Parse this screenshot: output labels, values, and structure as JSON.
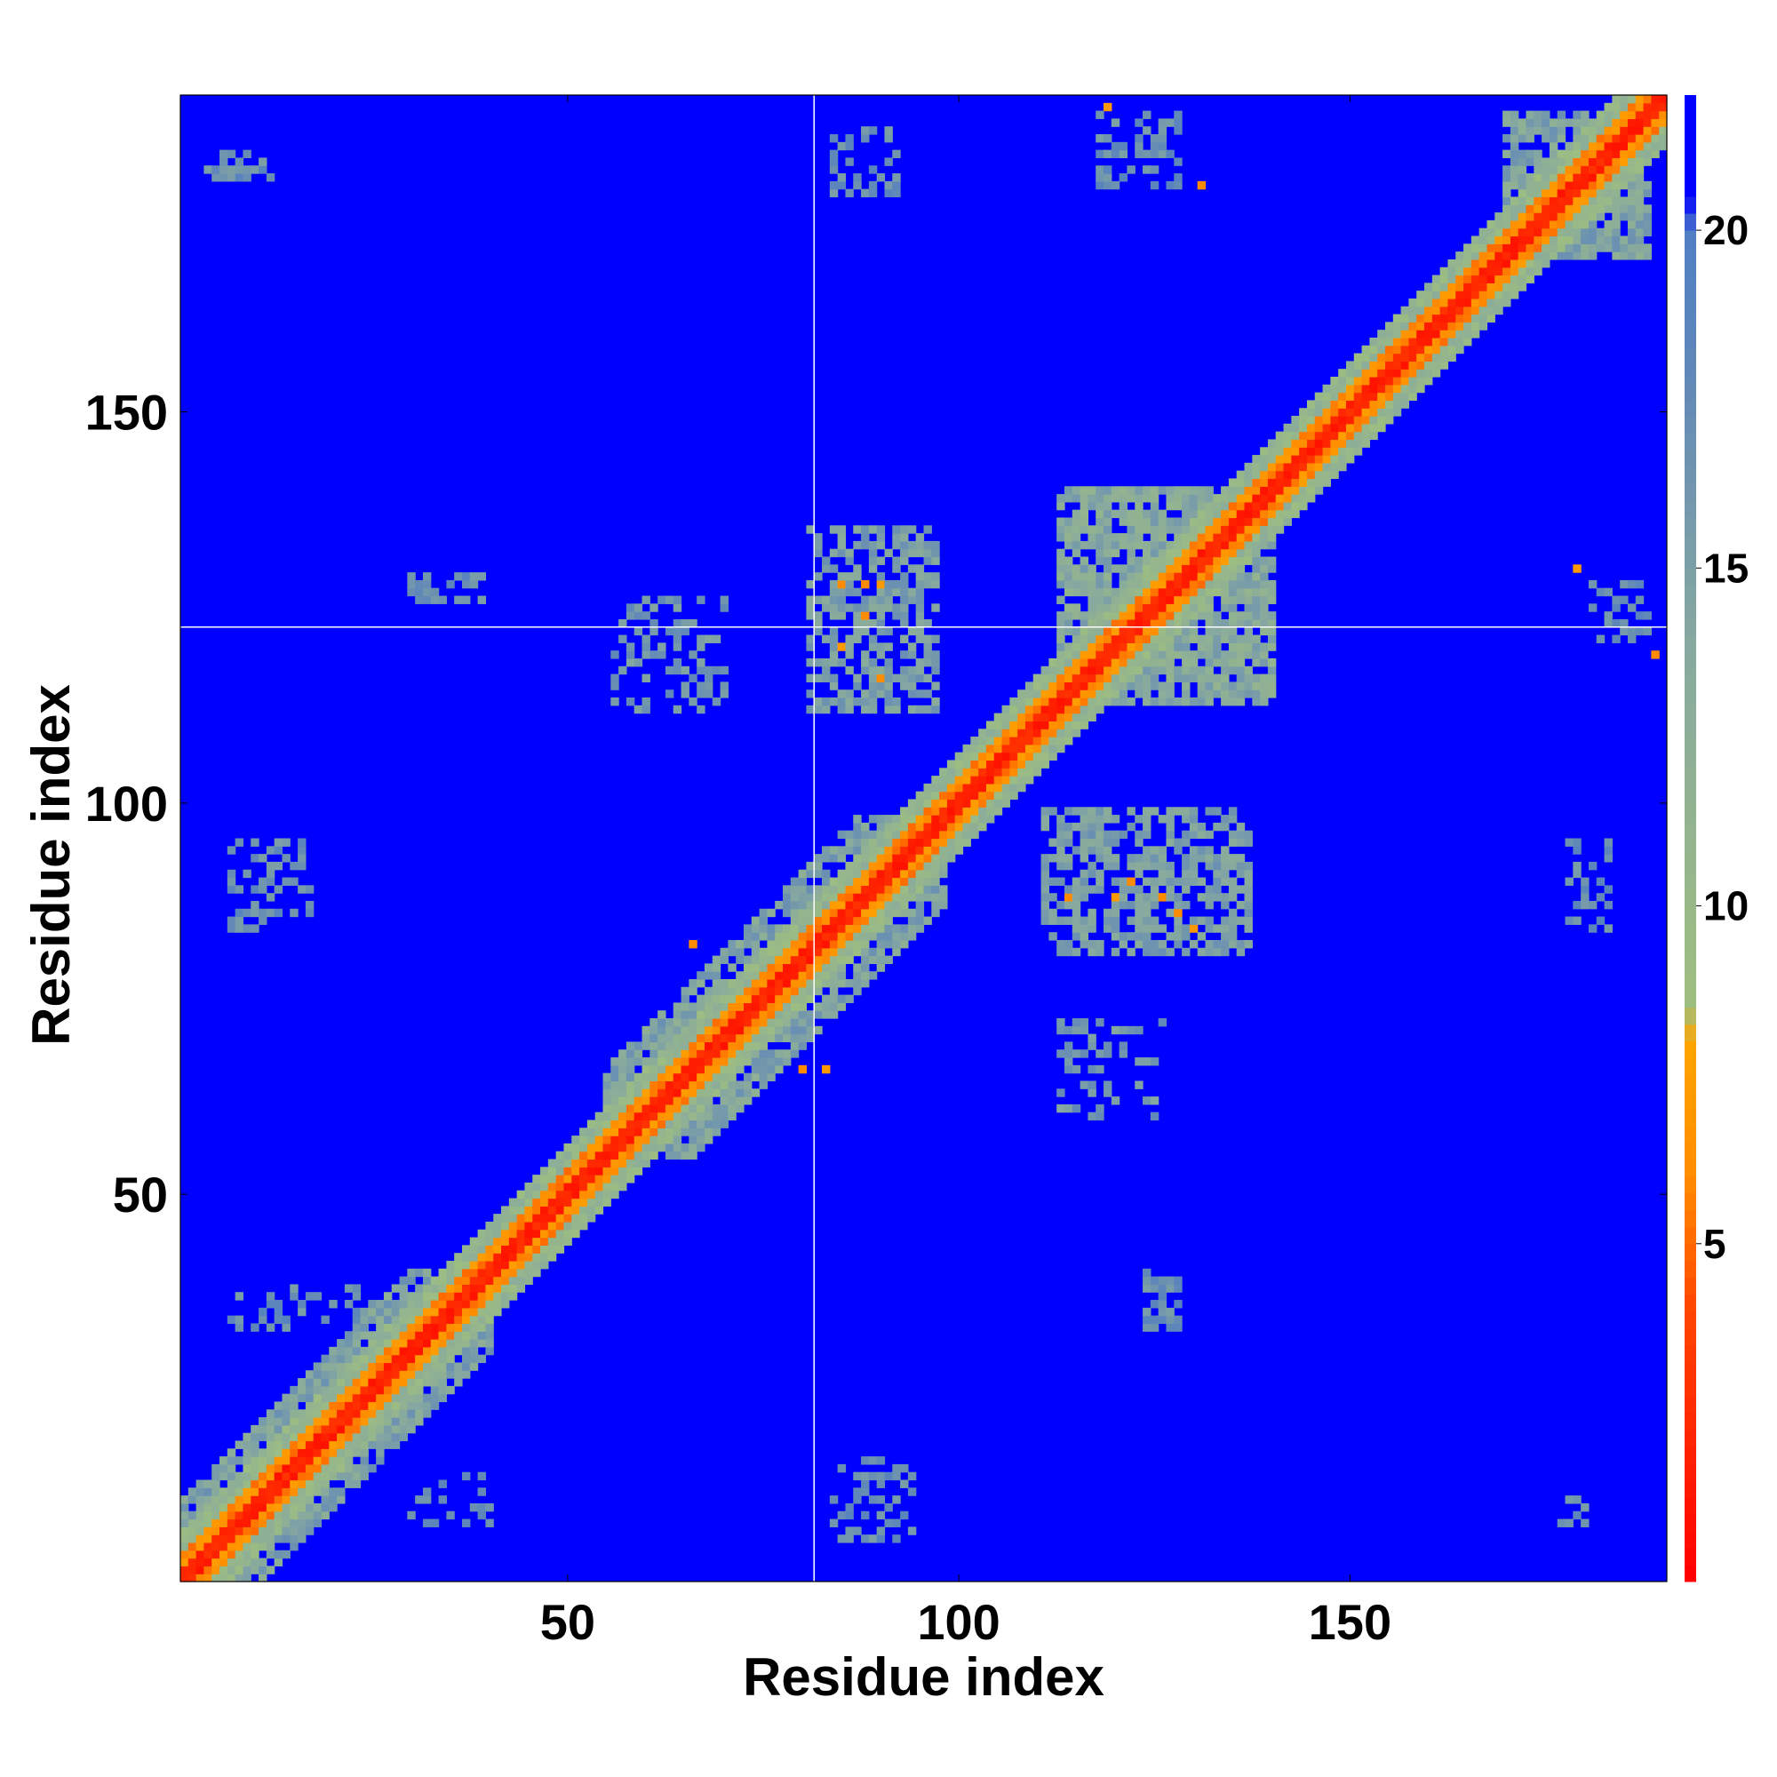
{
  "chart_data": {
    "type": "heatmap",
    "xlabel": "Residue index",
    "ylabel": "Residue index",
    "xlim": [
      0.5,
      190.5
    ],
    "ylim": [
      0.5,
      190.5
    ],
    "x_ticks": [
      50,
      100,
      150
    ],
    "y_ticks": [
      50,
      100,
      150
    ],
    "colorbar": {
      "range": [
        0,
        22
      ],
      "ticks": [
        5,
        10,
        15,
        20
      ],
      "stops": [
        {
          "value": 0,
          "color": "#ff0000"
        },
        {
          "value": 4,
          "color": "#ff4500"
        },
        {
          "value": 6,
          "color": "#ff8c00"
        },
        {
          "value": 8,
          "color": "#ffa500"
        },
        {
          "value": 8.5,
          "color": "#9fbf7f"
        },
        {
          "value": 14,
          "color": "#86a8a0"
        },
        {
          "value": 18,
          "color": "#5f87b9"
        },
        {
          "value": 20,
          "color": "#4f7fc4"
        },
        {
          "value": 20.5,
          "color": "#0000ff"
        },
        {
          "value": 22,
          "color": "#0000ff"
        }
      ]
    },
    "background_value": 22,
    "diagonal_band": {
      "core_halfwidth": 1.5,
      "orange_halfwidth": 3,
      "green_halfwidth": 6
    },
    "blocks": [
      {
        "x": [
          1,
          40
        ],
        "y": [
          1,
          40
        ],
        "band_halfwidth": 10,
        "value": 13
      },
      {
        "x": [
          55,
          98
        ],
        "y": [
          55,
          98
        ],
        "band_halfwidth": 11,
        "value": 13
      },
      {
        "x": [
          113,
          140
        ],
        "y": [
          113,
          140
        ],
        "value": 12
      },
      {
        "x": [
          143,
          155
        ],
        "y": [
          143,
          155
        ],
        "band_halfwidth": 5,
        "value": 13
      },
      {
        "x": [
          170,
          188
        ],
        "y": [
          170,
          188
        ],
        "value": 13
      }
    ],
    "patches": [
      {
        "x": [
          81,
          97
        ],
        "y": [
          112,
          135
        ],
        "value": 15,
        "density": 0.6
      },
      {
        "x": [
          111,
          137
        ],
        "y": [
          81,
          99
        ],
        "value": 15,
        "density": 0.6
      },
      {
        "x": [
          113,
          126
        ],
        "y": [
          60,
          72
        ],
        "value": 16,
        "density": 0.35
      },
      {
        "x": [
          56,
          70
        ],
        "y": [
          112,
          126
        ],
        "value": 16,
        "density": 0.35
      },
      {
        "x": [
          7,
          17
        ],
        "y": [
          84,
          95
        ],
        "value": 17,
        "density": 0.4
      },
      {
        "x": [
          178,
          183
        ],
        "y": [
          84,
          95
        ],
        "value": 17,
        "density": 0.4
      },
      {
        "x": [
          84,
          94
        ],
        "y": [
          6,
          16
        ],
        "value": 17,
        "density": 0.4
      },
      {
        "x": [
          84,
          92
        ],
        "y": [
          178,
          186
        ],
        "value": 17,
        "density": 0.4
      },
      {
        "x": [
          118,
          128
        ],
        "y": [
          179,
          188
        ],
        "value": 17,
        "density": 0.35
      },
      {
        "x": [
          124,
          128
        ],
        "y": [
          33,
          40
        ],
        "value": 17,
        "density": 0.6
      },
      {
        "x": [
          30,
          39
        ],
        "y": [
          126,
          129
        ],
        "value": 17,
        "density": 0.5
      },
      {
        "x": [
          181,
          188
        ],
        "y": [
          121,
          128
        ],
        "value": 17,
        "density": 0.4
      },
      {
        "x": [
          4,
          12
        ],
        "y": [
          180,
          183
        ],
        "value": 17,
        "density": 0.5
      },
      {
        "x": [
          7,
          25
        ],
        "y": [
          33,
          38
        ],
        "value": 17,
        "density": 0.25
      },
      {
        "x": [
          30,
          40
        ],
        "y": [
          8,
          14
        ],
        "value": 17,
        "density": 0.2
      },
      {
        "x": [
          177,
          180
        ],
        "y": [
          8,
          12
        ],
        "value": 17,
        "density": 0.4
      }
    ],
    "hot_spots": [
      {
        "x": 85,
        "y": 128,
        "value": 6
      },
      {
        "x": 88,
        "y": 128,
        "value": 6
      },
      {
        "x": 90,
        "y": 128,
        "value": 7
      },
      {
        "x": 88,
        "y": 124,
        "value": 6
      },
      {
        "x": 85,
        "y": 120,
        "value": 7
      },
      {
        "x": 90,
        "y": 116,
        "value": 6
      },
      {
        "x": 114,
        "y": 88,
        "value": 6
      },
      {
        "x": 120,
        "y": 88,
        "value": 7
      },
      {
        "x": 126,
        "y": 88,
        "value": 6
      },
      {
        "x": 128,
        "y": 86,
        "value": 6
      },
      {
        "x": 130,
        "y": 84,
        "value": 7
      },
      {
        "x": 122,
        "y": 90,
        "value": 6
      },
      {
        "x": 66,
        "y": 82,
        "value": 6
      },
      {
        "x": 80,
        "y": 66,
        "value": 6
      },
      {
        "x": 83,
        "y": 66,
        "value": 7
      },
      {
        "x": 119,
        "y": 189,
        "value": 7
      },
      {
        "x": 131,
        "y": 179,
        "value": 6
      },
      {
        "x": 179,
        "y": 130,
        "value": 7
      },
      {
        "x": 189,
        "y": 119,
        "value": 6
      }
    ],
    "crosshair": {
      "x": 81.5,
      "y": 122.5
    }
  }
}
